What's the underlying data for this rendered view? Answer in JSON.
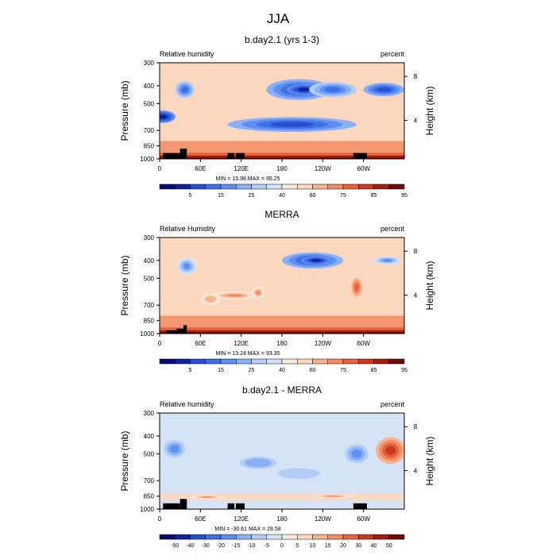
{
  "figure": {
    "title": "JJA"
  },
  "axes": {
    "xlabel_ticks": [
      "0",
      "60E",
      "120E",
      "180",
      "120W",
      "60W"
    ],
    "ylabel": "Pressure (mb)",
    "yticks": [
      "300",
      "400",
      "500",
      "700",
      "850",
      "1000"
    ],
    "right_label": "Height (km)",
    "right_ticks": [
      "8",
      "4"
    ]
  },
  "chart_data": [
    {
      "type": "heatmap",
      "title": "b.day2.1 (yrs 1-3)",
      "left_label": "Relative humidity",
      "right_unit": "percent",
      "stats": "MIN = 15.98  MAX = 95.25",
      "x_range": [
        0,
        360
      ],
      "y_range_mb": [
        1000,
        300
      ],
      "colorbar_labels": [
        "5",
        "15",
        "25",
        "40",
        "60",
        "75",
        "85",
        "95"
      ],
      "colorbar_colors": [
        "#0a0a6e",
        "#10209e",
        "#2a4ed0",
        "#3f6fe6",
        "#5d8ef2",
        "#88b0f6",
        "#b3cdf7",
        "#d5e3f6",
        "#f4ece3",
        "#fbd7bf",
        "#f7b490",
        "#f28c62",
        "#e5623a",
        "#c93a1e",
        "#a31d10",
        "#6e0c06"
      ],
      "blobs": [
        {
          "cx": 37,
          "cy": 420,
          "rx": 14,
          "ry": 90,
          "v": 2
        },
        {
          "cx": 205,
          "cy": 420,
          "rx": 48,
          "ry": 110,
          "v": 1
        },
        {
          "cx": 212,
          "cy": 420,
          "rx": 25,
          "ry": 55,
          "v": -1
        },
        {
          "cx": 5,
          "cy": 590,
          "rx": 18,
          "ry": 90,
          "v": 0
        },
        {
          "cx": 195,
          "cy": 650,
          "rx": 95,
          "ry": 120,
          "v": 1
        },
        {
          "cx": 330,
          "cy": 420,
          "rx": 30,
          "ry": 70,
          "v": 1
        },
        {
          "cx": 255,
          "cy": 420,
          "rx": 35,
          "ry": 80,
          "v": 2
        }
      ],
      "land_blocks": [
        [
          5,
          30,
          1000,
          930
        ],
        [
          30,
          40,
          1000,
          880
        ],
        [
          100,
          110,
          1000,
          930
        ],
        [
          112,
          125,
          1000,
          930
        ],
        [
          285,
          305,
          1000,
          930
        ]
      ]
    },
    {
      "type": "heatmap",
      "title": "MERRA",
      "left_label": "Relative Humidity",
      "right_unit": "percent",
      "stats": "MIN = 13.24  MAX = 93.35",
      "x_range": [
        0,
        360
      ],
      "y_range_mb": [
        1000,
        300
      ],
      "colorbar_labels": [
        "5",
        "15",
        "25",
        "40",
        "60",
        "75",
        "85",
        "95"
      ],
      "colorbar_colors": [
        "#0a0a6e",
        "#10209e",
        "#2a4ed0",
        "#3f6fe6",
        "#5d8ef2",
        "#88b0f6",
        "#b3cdf7",
        "#d5e3f6",
        "#f4ece3",
        "#fbd7bf",
        "#f7b490",
        "#f28c62",
        "#e5623a",
        "#c93a1e",
        "#a31d10",
        "#6e0c06"
      ],
      "blobs": [
        {
          "cx": 40,
          "cy": 430,
          "rx": 14,
          "ry": 90,
          "v": 3
        },
        {
          "cx": 225,
          "cy": 400,
          "rx": 45,
          "ry": 80,
          "v": 1
        },
        {
          "cx": 230,
          "cy": 400,
          "rx": 22,
          "ry": 40,
          "v": -1
        },
        {
          "cx": 335,
          "cy": 400,
          "rx": 20,
          "ry": 40,
          "v": 3
        },
        {
          "cx": 110,
          "cy": 620,
          "rx": 35,
          "ry": 60,
          "v": 11
        },
        {
          "cx": 290,
          "cy": 560,
          "rx": 10,
          "ry": 170,
          "v": 12
        },
        {
          "cx": 75,
          "cy": 650,
          "rx": 14,
          "ry": 90,
          "v": 10
        },
        {
          "cx": 145,
          "cy": 600,
          "rx": 10,
          "ry": 90,
          "v": 11
        }
      ],
      "land_blocks": [
        [
          10,
          25,
          1000,
          960
        ],
        [
          25,
          35,
          1000,
          940
        ],
        [
          35,
          40,
          1000,
          900
        ]
      ]
    },
    {
      "type": "heatmap",
      "title": "b.day2.1 - MERRA",
      "left_label": "Relative humidity",
      "right_unit": "percent",
      "stats": "MIN = -30.61  MAX = 28.58",
      "x_range": [
        0,
        360
      ],
      "y_range_mb": [
        1000,
        300
      ],
      "colorbar_labels": [
        "-50",
        "-40",
        "-30",
        "-20",
        "-15",
        "-10",
        "-5",
        "0",
        "5",
        "10",
        "15",
        "20",
        "30",
        "40",
        "50"
      ],
      "colorbar_colors": [
        "#0a0a6e",
        "#10209e",
        "#2a4ed0",
        "#3f6fe6",
        "#5d8ef2",
        "#88b0f6",
        "#b3cdf7",
        "#d5e3f6",
        "#f4ece3",
        "#fbd7bf",
        "#f7b490",
        "#f28c62",
        "#e5623a",
        "#c93a1e",
        "#a31d10",
        "#6e0c06"
      ],
      "blobs": [
        {
          "cx": 22,
          "cy": 470,
          "rx": 20,
          "ry": 130,
          "v": 3
        },
        {
          "cx": 145,
          "cy": 560,
          "rx": 35,
          "ry": 110,
          "v": 5
        },
        {
          "cx": 290,
          "cy": 500,
          "rx": 22,
          "ry": 150,
          "v": 3
        },
        {
          "cx": 340,
          "cy": 480,
          "rx": 22,
          "ry": 160,
          "v": 13
        },
        {
          "cx": 70,
          "cy": 860,
          "rx": 25,
          "ry": 40,
          "v": 11
        },
        {
          "cx": 255,
          "cy": 850,
          "rx": 30,
          "ry": 35,
          "v": 11
        },
        {
          "cx": 205,
          "cy": 640,
          "rx": 40,
          "ry": 110,
          "v": 6
        }
      ],
      "land_blocks": [
        [
          5,
          30,
          1000,
          930
        ],
        [
          30,
          40,
          1000,
          880
        ],
        [
          100,
          110,
          1000,
          930
        ],
        [
          112,
          125,
          1000,
          930
        ],
        [
          285,
          305,
          1000,
          930
        ]
      ]
    }
  ]
}
